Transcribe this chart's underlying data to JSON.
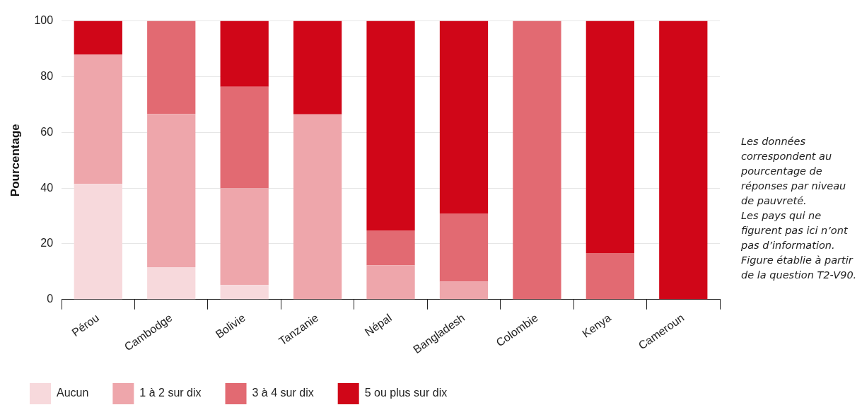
{
  "chart_data": {
    "type": "bar",
    "stacked": true,
    "ylabel": "Pourcentage",
    "categories": [
      "Pérou",
      "Cambodge",
      "Bolivie",
      "Tanzanie",
      "Népal",
      "Bangladesh",
      "Colombie",
      "Kenya",
      "Cameroun"
    ],
    "series": [
      {
        "name": "Aucun",
        "color": "#f7d9dc",
        "values": [
          41.5,
          11.6,
          5.2,
          0,
          0,
          0,
          0,
          0,
          0
        ]
      },
      {
        "name": "1 à 2 sur dix",
        "color": "#eea6ab",
        "values": [
          46.5,
          55,
          34.7,
          66.5,
          12.3,
          6.4,
          0,
          0,
          0
        ]
      },
      {
        "name": "3 à 4 sur dix",
        "color": "#e26a72",
        "values": [
          0,
          33.4,
          36.5,
          0,
          12.5,
          24.5,
          100,
          16.7,
          0
        ]
      },
      {
        "name": "5 ou plus sur dix",
        "color": "#d00618",
        "values": [
          12,
          0,
          23.6,
          33.5,
          75.2,
          69.1,
          0,
          83.3,
          100
        ]
      }
    ],
    "ylim": [
      0,
      100
    ],
    "yticks": [
      0,
      20,
      40,
      60,
      80,
      100
    ],
    "grid": "y",
    "legend": "bottom left",
    "annotations": [
      "Les données correspondent au pourcentage de réponses par niveau de pauvreté.",
      "Les pays qui ne figurent pas ici n’ont pas d’information.",
      "Figure établie à partir de la question T2-V90."
    ]
  }
}
